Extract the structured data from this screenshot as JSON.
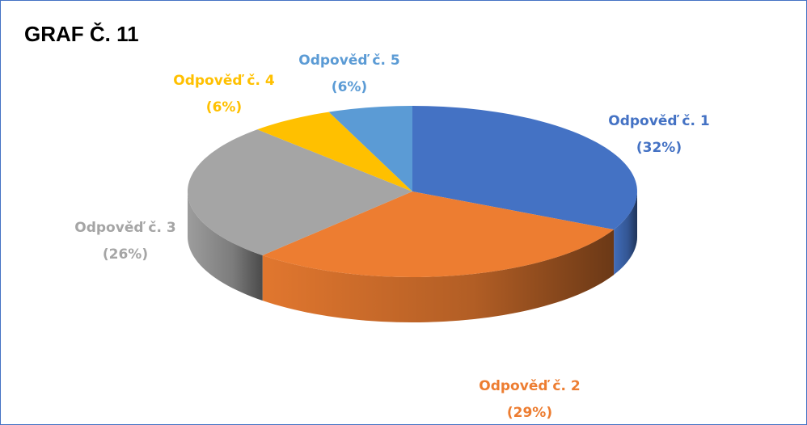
{
  "chart_data": {
    "type": "pie3d",
    "title": "GRAF Č. 11",
    "categories": [
      "Odpověď č. 1",
      "Odpověď č. 2",
      "Odpověď č. 3",
      "Odpověď č. 4",
      "Odpověď č. 5"
    ],
    "values": [
      32,
      29,
      26,
      6,
      6
    ],
    "value_labels": [
      "(32%)",
      "(29%)",
      "(26%)",
      "(6%)",
      "(6%)"
    ],
    "colors": [
      "#4472c4",
      "#ed7d31",
      "#a5a5a5",
      "#ffc000",
      "#5b9bd5"
    ]
  }
}
